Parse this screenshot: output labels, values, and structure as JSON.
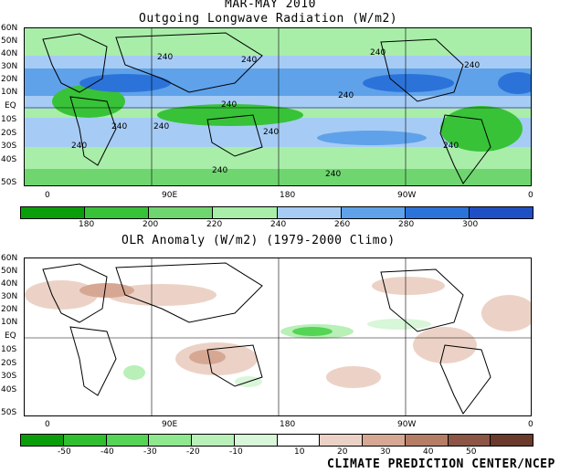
{
  "header": {
    "season": "MAR-MAY 2010",
    "title": "Outgoing Longwave Radiation (W/m2)"
  },
  "top_map": {
    "y_labels": [
      "60N",
      "50N",
      "40N",
      "30N",
      "20N",
      "10N",
      "EQ",
      "10S",
      "20S",
      "30S",
      "40S",
      "50S"
    ],
    "x_labels": [
      "0",
      "90E",
      "180",
      "90W",
      "0"
    ],
    "contour_label": "240",
    "colorbar": {
      "ticks": [
        "180",
        "200",
        "220",
        "240",
        "260",
        "280",
        "300"
      ],
      "colors": [
        "#0a9f0a",
        "#38c238",
        "#6fd66f",
        "#a8eea8",
        "#a6ccf5",
        "#5fa2ea",
        "#2c73d9",
        "#1f4fc4"
      ]
    }
  },
  "anomaly": {
    "title": "OLR Anomaly (W/m2) (1979-2000 Climo)",
    "y_labels": [
      "60N",
      "50N",
      "40N",
      "30N",
      "20N",
      "10N",
      "EQ",
      "10S",
      "20S",
      "30S",
      "40S",
      "50S"
    ],
    "x_labels": [
      "0",
      "90E",
      "180",
      "90W",
      "0"
    ],
    "colorbar": {
      "ticks": [
        "-50",
        "-40",
        "-30",
        "-20",
        "-10",
        "10",
        "20",
        "30",
        "40",
        "50"
      ],
      "colors": [
        "#0a9f0a",
        "#2fbf2f",
        "#55d455",
        "#8ee88e",
        "#b8f0b8",
        "#d8f6d8",
        "#ffffff",
        "#ecd2c6",
        "#d6a894",
        "#b57d66",
        "#8c5545",
        "#6a3a2c"
      ]
    }
  },
  "credit": "CLIMATE PREDICTION CENTER/NCEP"
}
